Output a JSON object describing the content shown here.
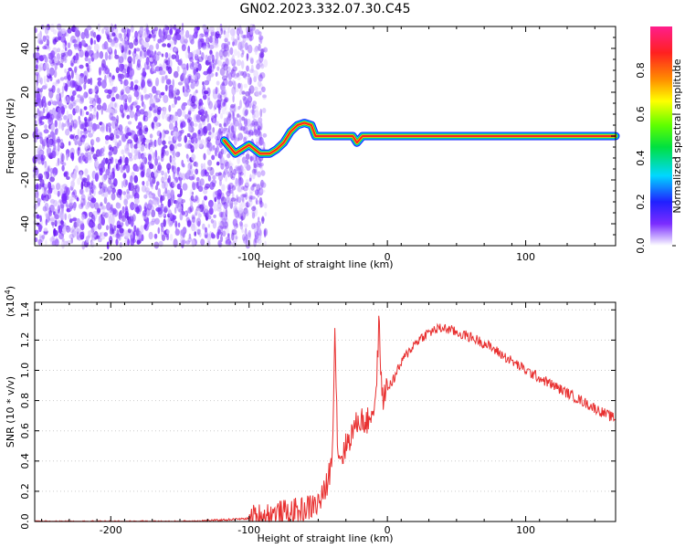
{
  "title": "GN02.2023.332.07.30.C45",
  "chart_data": [
    {
      "type": "heatmap",
      "xlabel": "Height of straight line (km)",
      "ylabel": "Frequency (Hz)",
      "xlim": [
        -255,
        165
      ],
      "ylim": [
        -50,
        50
      ],
      "x_ticks": [
        -200,
        -100,
        0,
        100
      ],
      "y_ticks": [
        -40,
        -20,
        0,
        20,
        40
      ],
      "colorbar": {
        "label": "Normalized spectral amplitude",
        "range": [
          0,
          1
        ],
        "ticks": [
          "0.0",
          "0.2",
          "0.4",
          "0.6",
          "0.8"
        ],
        "colormap": "rainbow"
      },
      "ridge": [
        {
          "x": -118,
          "y": -2
        },
        {
          "x": -110,
          "y": -8
        },
        {
          "x": -100,
          "y": -4
        },
        {
          "x": -92,
          "y": -8
        },
        {
          "x": -85,
          "y": -8
        },
        {
          "x": -80,
          "y": -6
        },
        {
          "x": -75,
          "y": -3
        },
        {
          "x": -70,
          "y": 2
        },
        {
          "x": -65,
          "y": 5
        },
        {
          "x": -60,
          "y": 6
        },
        {
          "x": -55,
          "y": 5
        },
        {
          "x": -52,
          "y": 0
        },
        {
          "x": -40,
          "y": 0
        },
        {
          "x": -36,
          "y": 0
        },
        {
          "x": -32,
          "y": 0
        },
        {
          "x": -25,
          "y": 0
        },
        {
          "x": -22,
          "y": -3
        },
        {
          "x": -18,
          "y": 0
        },
        {
          "x": -10,
          "y": 0
        },
        {
          "x": 0,
          "y": 0
        },
        {
          "x": 100,
          "y": 0
        },
        {
          "x": 165,
          "y": 0
        }
      ],
      "noise_region": {
        "x_from": -255,
        "x_to": -88
      }
    },
    {
      "type": "line",
      "xlabel": "Height of straight line (km)",
      "ylabel": "SNR (10 * v/v)",
      "y_multiplier": "(x10",
      "y_multiplier_exp": "4",
      "y_multiplier_close": ")",
      "xlim": [
        -255,
        165
      ],
      "ylim": [
        0,
        1.45
      ],
      "x_ticks": [
        -200,
        -100,
        0,
        100
      ],
      "y_ticks": [
        "0.0",
        "0.2",
        "0.4",
        "0.6",
        "0.8",
        "1.0",
        "1.2",
        "1.4"
      ],
      "series": [
        {
          "color": "#e83030",
          "x": [
            -255,
            -200,
            -150,
            -120,
            -100,
            -90,
            -80,
            -70,
            -60,
            -55,
            -50,
            -45,
            -40,
            -38,
            -36,
            -34,
            -32,
            -30,
            -25,
            -20,
            -15,
            -10,
            -8,
            -6,
            -4,
            -2,
            0,
            5,
            10,
            15,
            20,
            25,
            30,
            35,
            40,
            45,
            50,
            60,
            70,
            80,
            90,
            100,
            110,
            120,
            130,
            140,
            150,
            160,
            165
          ],
          "y": [
            0.0,
            0.0,
            0.0,
            0.01,
            0.02,
            0.04,
            0.05,
            0.06,
            0.08,
            0.1,
            0.12,
            0.2,
            0.4,
            1.3,
            0.5,
            0.42,
            0.45,
            0.5,
            0.6,
            0.68,
            0.65,
            0.75,
            0.85,
            1.35,
            0.8,
            0.85,
            0.88,
            0.95,
            1.05,
            1.12,
            1.18,
            1.22,
            1.25,
            1.27,
            1.28,
            1.27,
            1.25,
            1.22,
            1.18,
            1.12,
            1.06,
            1.0,
            0.95,
            0.9,
            0.85,
            0.8,
            0.75,
            0.7,
            0.68
          ]
        }
      ]
    }
  ]
}
